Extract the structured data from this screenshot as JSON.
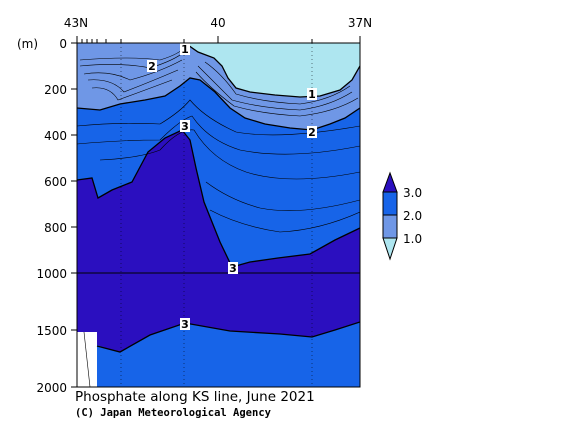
{
  "chart_data": {
    "type": "contour",
    "title": "Phosphate along KS line, June 2021",
    "credit": "(C) Japan Meteorological Agency",
    "x_axis": {
      "position": "top",
      "tick_labels": [
        "43N",
        "40",
        "37N"
      ]
    },
    "y_axis": {
      "unit_label": "(m)",
      "inverted": true,
      "range": [
        0,
        2000
      ],
      "tick_labels": [
        "0",
        "200",
        "400",
        "600",
        "800",
        "1000",
        "1500",
        "2000"
      ],
      "upper_range": [
        0,
        1000
      ],
      "lower_range": [
        1000,
        2000
      ]
    },
    "colorbar": {
      "levels": [
        1.0,
        2.0,
        3.0
      ],
      "labels": [
        "3.0",
        "2.0",
        "1.0"
      ],
      "colors": [
        "#aee6f0",
        "#6f97e6",
        "#1764e8",
        "#2b0fbf"
      ]
    },
    "contour_labels": [
      "1",
      "2",
      "1",
      "2",
      "3",
      "3",
      "3"
    ],
    "colors": {
      "very_low": "#aee6f0",
      "low": "#6f97e6",
      "mid": "#1764e8",
      "high": "#2b0fbf"
    }
  }
}
